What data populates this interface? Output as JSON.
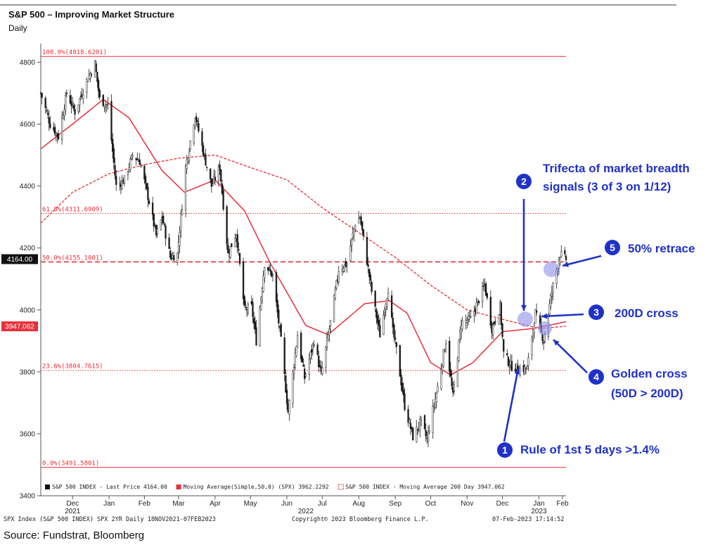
{
  "header": {
    "title": "S&P 500 – Improving Market Structure",
    "subtitle": "Daily"
  },
  "footer": {
    "left": "SPX Index (S&P 500 INDEX) SPX 2YR  Daily 18NOV2021-07FEB2023",
    "center": "Copyright© 2023 Bloomberg Finance L.P.",
    "right": "07-Feb-2023 17:14:52",
    "source": "Source: Fundstrat, Bloomberg"
  },
  "colors": {
    "candle": "#1a1a1a",
    "ma": "#e8303a",
    "fib": "#e8303a",
    "annotation": "#1f31c8",
    "marker": "#8c8fe6",
    "price_tag": "#111111",
    "ma200_tag": "#e8303a"
  },
  "chart_data": {
    "type": "line",
    "ylim": [
      3400,
      4860
    ],
    "yticks": [
      3400,
      3600,
      3800,
      4000,
      4200,
      4400,
      4600,
      4800
    ],
    "xlim": [
      "2021-11-18",
      "2023-02-07"
    ],
    "months": [
      {
        "label": "Dec",
        "date": "2021-12-15"
      },
      {
        "label": "Jan",
        "date": "2022-01-15"
      },
      {
        "label": "Feb",
        "date": "2022-02-14"
      },
      {
        "label": "Mar",
        "date": "2022-03-15"
      },
      {
        "label": "Apr",
        "date": "2022-04-15"
      },
      {
        "label": "May",
        "date": "2022-05-15"
      },
      {
        "label": "Jun",
        "date": "2022-06-15"
      },
      {
        "label": "Jul",
        "date": "2022-07-15"
      },
      {
        "label": "Aug",
        "date": "2022-08-15"
      },
      {
        "label": "Sep",
        "date": "2022-09-15"
      },
      {
        "label": "Oct",
        "date": "2022-10-15"
      },
      {
        "label": "Nov",
        "date": "2022-11-15"
      },
      {
        "label": "Dec",
        "date": "2022-12-15"
      },
      {
        "label": "Jan",
        "date": "2023-01-15"
      },
      {
        "label": "Feb",
        "date": "2023-02-04"
      }
    ],
    "years": [
      {
        "label": "2021",
        "date": "2021-12-15"
      },
      {
        "label": "2022",
        "date": "2022-07-01"
      },
      {
        "label": "2023",
        "date": "2023-01-15"
      }
    ],
    "price": {
      "name": "S&P 500 INDEX - Last Price",
      "last": "4164.00",
      "dates": [
        "2021-11-18",
        "2021-11-26",
        "2021-12-03",
        "2021-12-10",
        "2021-12-17",
        "2021-12-27",
        "2022-01-03",
        "2022-01-07",
        "2022-01-14",
        "2022-01-21",
        "2022-01-28",
        "2022-02-04",
        "2022-02-10",
        "2022-02-18",
        "2022-02-24",
        "2022-03-01",
        "2022-03-08",
        "2022-03-14",
        "2022-03-21",
        "2022-03-29",
        "2022-04-05",
        "2022-04-12",
        "2022-04-19",
        "2022-04-26",
        "2022-05-03",
        "2022-05-10",
        "2022-05-16",
        "2022-05-20",
        "2022-05-27",
        "2022-06-03",
        "2022-06-10",
        "2022-06-16",
        "2022-06-24",
        "2022-06-30",
        "2022-07-08",
        "2022-07-14",
        "2022-07-22",
        "2022-07-29",
        "2022-08-05",
        "2022-08-12",
        "2022-08-16",
        "2022-08-19",
        "2022-08-26",
        "2022-09-02",
        "2022-09-09",
        "2022-09-13",
        "2022-09-16",
        "2022-09-23",
        "2022-09-30",
        "2022-10-07",
        "2022-10-12",
        "2022-10-14",
        "2022-10-21",
        "2022-10-28",
        "2022-11-03",
        "2022-11-10",
        "2022-11-18",
        "2022-11-30",
        "2022-12-06",
        "2022-12-13",
        "2022-12-16",
        "2022-12-22",
        "2022-12-29",
        "2023-01-05",
        "2023-01-12",
        "2023-01-19",
        "2023-01-26",
        "2023-02-02",
        "2023-02-07"
      ],
      "values": [
        4700,
        4600,
        4560,
        4700,
        4640,
        4740,
        4795,
        4680,
        4660,
        4400,
        4420,
        4500,
        4480,
        4350,
        4240,
        4300,
        4170,
        4180,
        4460,
        4630,
        4510,
        4400,
        4460,
        4180,
        4250,
        4000,
        4010,
        3900,
        4150,
        4110,
        3900,
        3670,
        3920,
        3780,
        3900,
        3790,
        3960,
        4130,
        4150,
        4280,
        4300,
        4230,
        4060,
        3920,
        4070,
        3930,
        3870,
        3690,
        3590,
        3640,
        3580,
        3620,
        3750,
        3900,
        3720,
        3960,
        3970,
        4080,
        3940,
        4010,
        3860,
        3820,
        3810,
        3810,
        3990,
        3900,
        4060,
        4180,
        4164
      ]
    },
    "ma50": {
      "name": "Moving Average(Simple,50,0) (SPX)",
      "last": "3962.2292",
      "dates": [
        "2021-11-18",
        "2021-12-15",
        "2022-01-10",
        "2022-02-01",
        "2022-03-01",
        "2022-03-20",
        "2022-04-15",
        "2022-05-10",
        "2022-06-01",
        "2022-07-01",
        "2022-07-20",
        "2022-08-20",
        "2022-09-10",
        "2022-09-25",
        "2022-10-15",
        "2022-11-01",
        "2022-11-20",
        "2022-12-15",
        "2023-01-10",
        "2023-02-07"
      ],
      "values": [
        4520,
        4600,
        4680,
        4620,
        4450,
        4380,
        4420,
        4320,
        4150,
        3950,
        3920,
        4020,
        4030,
        3990,
        3830,
        3790,
        3830,
        3930,
        3940,
        3962
      ]
    },
    "ma200": {
      "name": "S&P 500 INDEX - Moving Average 200 Day",
      "last": "3947.062",
      "dates": [
        "2021-11-18",
        "2021-12-15",
        "2022-01-15",
        "2022-02-15",
        "2022-03-15",
        "2022-04-15",
        "2022-05-15",
        "2022-06-15",
        "2022-07-15",
        "2022-08-15",
        "2022-09-15",
        "2022-10-15",
        "2022-11-15",
        "2022-12-15",
        "2023-01-15",
        "2023-02-07"
      ],
      "values": [
        4280,
        4380,
        4440,
        4470,
        4490,
        4500,
        4460,
        4420,
        4330,
        4250,
        4170,
        4080,
        4000,
        3970,
        3940,
        3947
      ]
    },
    "fib_levels": [
      {
        "label": "100.0%(4818.6201)",
        "value": 4818.6201,
        "style": "solid"
      },
      {
        "label": "61.8%(4311.6909)",
        "value": 4311.6909,
        "style": "dotted"
      },
      {
        "label": "50.0%(4155.1001)",
        "value": 4155.1001,
        "style": "dashed"
      },
      {
        "label": "23.6%(3804.7615)",
        "value": 3804.7615,
        "style": "dotted"
      },
      {
        "label": "0.0%(3491.5801)",
        "value": 3491.5801,
        "style": "solid"
      }
    ],
    "price_tags": [
      {
        "text": "4164.00",
        "value": 4164
      },
      {
        "text": "3947.062",
        "value": 3947.062
      }
    ],
    "legend": [
      {
        "text": "S&P 500 INDEX - Last Price 4164.00",
        "kind": "price"
      },
      {
        "text": "Moving Average(Simple,50,0) (SPX) 3962.2292",
        "kind": "ma50"
      },
      {
        "text": "S&P 500 INDEX - Moving Average 200 Day 3947.062",
        "kind": "ma200"
      }
    ],
    "annotations": [
      {
        "num": "2",
        "lines": [
          "Trifecta of market breadth",
          "signals (3 of 3 on 1/12)"
        ]
      },
      {
        "num": "5",
        "lines": [
          "50% retrace"
        ]
      },
      {
        "num": "3",
        "lines": [
          "200D cross"
        ]
      },
      {
        "num": "4",
        "lines": [
          "Golden cross",
          "(50D > 200D)"
        ]
      },
      {
        "num": "1",
        "lines": [
          "Rule of 1st 5 days >1.4%"
        ]
      }
    ]
  }
}
